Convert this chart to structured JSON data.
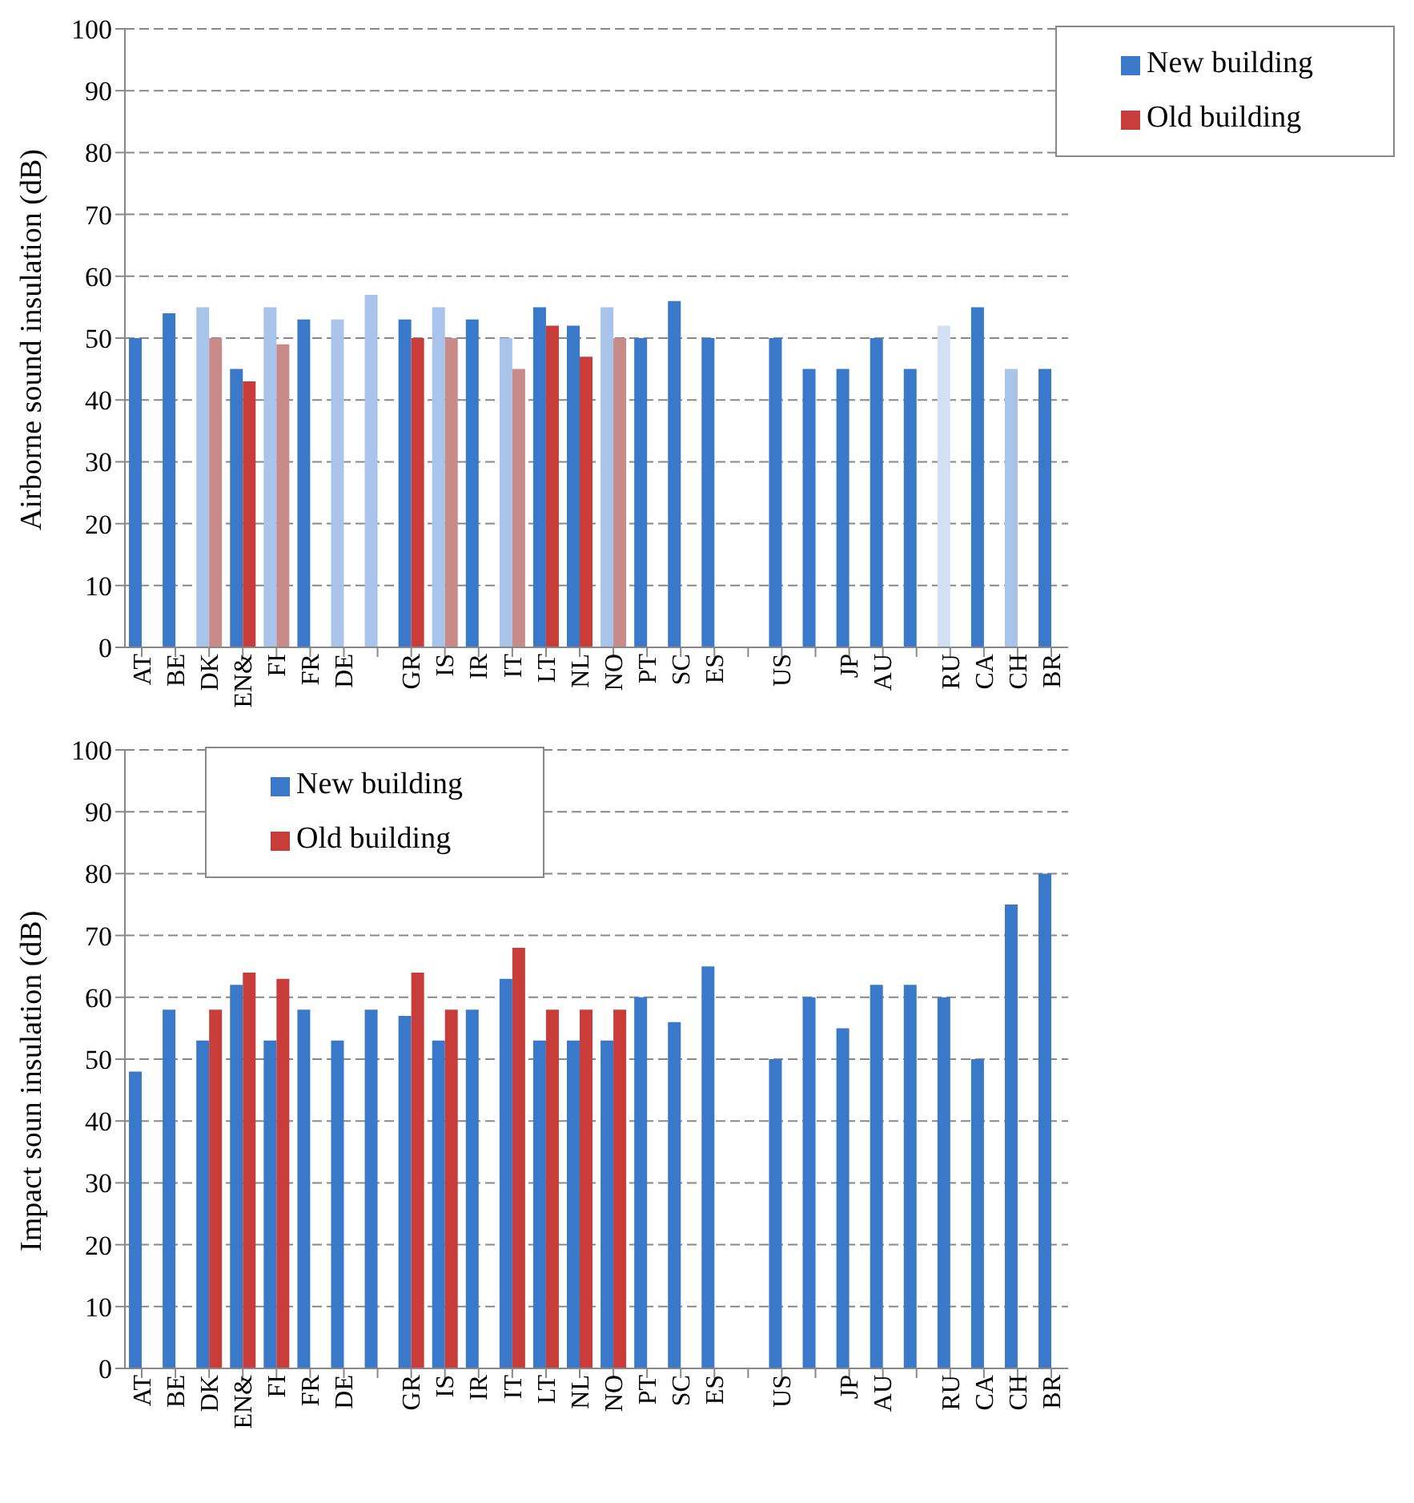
{
  "chart_data": [
    {
      "type": "bar",
      "ylabel": "Airborne sound insulation (dB)",
      "categories": [
        "AT",
        "BE",
        "DK",
        "EN&",
        "FI",
        "FR",
        "DE",
        null,
        "GR",
        "IS",
        "IR",
        "IT",
        "LT",
        "NL",
        "NO",
        "PT",
        "SC",
        "ES",
        null,
        "US",
        null,
        "JP",
        "AU",
        null,
        "RU",
        "CA",
        "CH",
        "BR"
      ],
      "series": [
        {
          "name": "New building",
          "color": "#3a78c9",
          "colors": [
            "#3a78c9",
            "#3a78c9",
            "#a9c4ea",
            "#3a78c9",
            "#a9c4ea",
            "#3a78c9",
            "#a9c4ea",
            "#a9c4ea",
            "#3a78c9",
            "#a9c4ea",
            "#3a78c9",
            "#a9c4ea",
            "#3a78c9",
            "#3a78c9",
            "#a9c4ea",
            "#3a78c9",
            "#3a78c9",
            "#3a78c9",
            "#3a78c9",
            "#3a78c9",
            "#3a78c9",
            "#3a78c9",
            "#3a78c9",
            "#3a78c9",
            "#d3e0f3",
            "#3a78c9",
            "#a9c4ea",
            "#3a78c9"
          ],
          "values": [
            50,
            54,
            55,
            45,
            55,
            53,
            53,
            57,
            53,
            55,
            53,
            50,
            55,
            52,
            55,
            50,
            56,
            50,
            null,
            50,
            45,
            45,
            50,
            45,
            52,
            55,
            45,
            45
          ]
        },
        {
          "name": "Old building",
          "color": "#c83c3a",
          "colors": [
            "#c83c3a",
            "#c83c3a",
            "#c98a8a",
            "#c83c3a",
            "#c98a8a",
            "#c83c3a",
            "#c83c3a",
            "#c83c3a",
            "#c83c3a",
            "#c98a8a",
            "#c83c3a",
            "#c98a8a",
            "#c83c3a",
            "#c83c3a",
            "#c98a8a",
            "#c83c3a",
            "#c83c3a",
            "#c83c3a",
            "#c83c3a",
            "#c83c3a",
            "#c83c3a",
            "#c83c3a",
            "#c83c3a",
            "#c83c3a",
            "#c83c3a",
            "#c83c3a",
            "#c83c3a",
            "#c83c3a"
          ],
          "values": [
            null,
            null,
            50,
            43,
            49,
            null,
            null,
            null,
            50,
            50,
            null,
            45,
            52,
            47,
            50,
            null,
            null,
            null,
            null,
            null,
            null,
            null,
            null,
            null,
            null,
            null,
            null,
            null
          ]
        }
      ],
      "ylim": [
        0,
        100
      ],
      "yticks": [
        0,
        10,
        20,
        30,
        40,
        50,
        60,
        70,
        80,
        90,
        100
      ],
      "grid": "y",
      "legend": "top right"
    },
    {
      "type": "bar",
      "ylabel": "Impact soun insulation (dB)",
      "categories": [
        "AT",
        "BE",
        "DK",
        "EN&",
        "FI",
        "FR",
        "DE",
        null,
        "GR",
        "IS",
        "IR",
        "IT",
        "LT",
        "NL",
        "NO",
        "PT",
        "SC",
        "ES",
        null,
        "US",
        null,
        "JP",
        "AU",
        null,
        "RU",
        "CA",
        "CH",
        "BR"
      ],
      "series": [
        {
          "name": "New building",
          "color": "#3a78c9",
          "values": [
            48,
            58,
            53,
            62,
            53,
            58,
            53,
            58,
            57,
            53,
            58,
            63,
            53,
            53,
            53,
            60,
            56,
            65,
            null,
            50,
            60,
            55,
            62,
            62,
            60,
            50,
            75,
            80
          ]
        },
        {
          "name": "Old building",
          "color": "#c83c3a",
          "values": [
            null,
            null,
            58,
            64,
            63,
            null,
            null,
            null,
            64,
            58,
            null,
            68,
            58,
            58,
            58,
            null,
            null,
            null,
            null,
            null,
            null,
            null,
            null,
            null,
            null,
            null,
            null,
            null
          ]
        }
      ],
      "ylim": [
        0,
        100
      ],
      "yticks": [
        0,
        10,
        20,
        30,
        40,
        50,
        60,
        70,
        80,
        90,
        100
      ],
      "grid": "y",
      "legend": "top left"
    }
  ]
}
